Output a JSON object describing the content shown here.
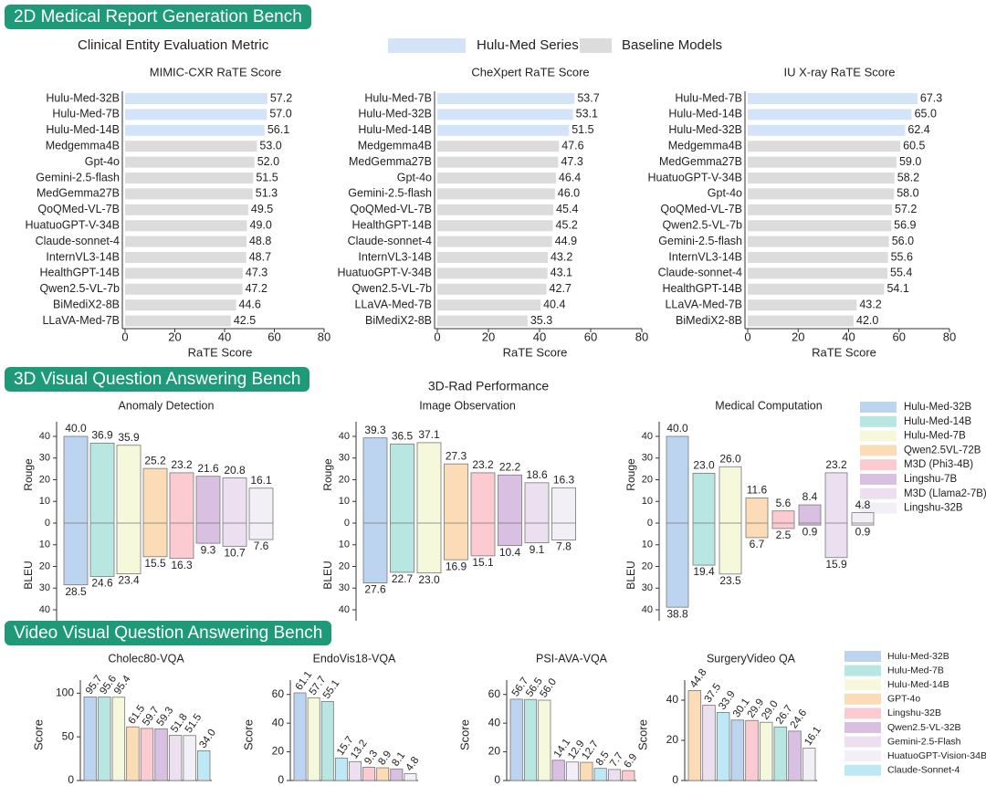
{
  "sections": {
    "report": "2D Medical Report Generation Bench",
    "vqa3d": "3D Visual Question Answering Bench",
    "video": "Video Visual Question Answering Bench"
  },
  "top_legend": {
    "caption": "Clinical Entity Evaluation Metric",
    "items": [
      {
        "label": "Hulu-Med Series",
        "color": "#d4e4f8"
      },
      {
        "label": "Baseline Models",
        "color": "#dcdcdc"
      }
    ]
  },
  "rad3d_title": "3D-Rad Performance",
  "legend3d": [
    {
      "label": "Hulu-Med-32B",
      "color": "#bcd4ef"
    },
    {
      "label": "Hulu-Med-14B",
      "color": "#b8e6e1"
    },
    {
      "label": "Hulu-Med-7B",
      "color": "#f6f8dc"
    },
    {
      "label": "Qwen2.5VL-72B",
      "color": "#fbdcb6"
    },
    {
      "label": "M3D (Phi3-4B)",
      "color": "#fbcbd1"
    },
    {
      "label": "Lingshu-7B",
      "color": "#d9c0e2"
    },
    {
      "label": "M3D (Llama2-7B)",
      "color": "#ebdff0"
    },
    {
      "label": "Lingshu-32B",
      "color": "#f2eff6"
    }
  ],
  "legend_video": [
    {
      "label": "Hulu-Med-32B",
      "color": "#bcd4ef"
    },
    {
      "label": "Hulu-Med-7B",
      "color": "#b8e6e1"
    },
    {
      "label": "Hulu-Med-14B",
      "color": "#f6f8dc"
    },
    {
      "label": "GPT-4o",
      "color": "#fbdcb6"
    },
    {
      "label": "Lingshu-32B",
      "color": "#fbcbd1"
    },
    {
      "label": "Qwen2.5-VL-32B",
      "color": "#d9c0e2"
    },
    {
      "label": "Gemini-2.5-Flash",
      "color": "#ebdff0"
    },
    {
      "label": "HuatuoGPT-Vision-34B",
      "color": "#f2eff6"
    },
    {
      "label": "Claude-Sonnet-4",
      "color": "#bfe8f7"
    }
  ],
  "chart_data": [
    {
      "type": "bar",
      "orientation": "horizontal",
      "title": "MIMIC-CXR RaTE Score",
      "xlabel": "RaTE Score",
      "xlim": [
        0,
        80
      ],
      "xticks": [
        0,
        20,
        40,
        60,
        80
      ],
      "categories": [
        "Hulu-Med-32B",
        "Hulu-Med-7B",
        "Hulu-Med-14B",
        "Medgemma4B",
        "Gpt-4o",
        "Gemini-2.5-flash",
        "MedGemma27B",
        "QoQMed-VL-7B",
        "HuatuoGPT-V-34B",
        "Claude-sonnet-4",
        "InternVL3-14B",
        "HealthGPT-14B",
        "Qwen2.5-VL-7b",
        "BiMediX2-8B",
        "LLaVA-Med-7B"
      ],
      "values": [
        57.2,
        57.0,
        56.1,
        53.0,
        52.0,
        51.5,
        51.3,
        49.5,
        49.0,
        48.8,
        48.7,
        47.3,
        47.2,
        44.6,
        42.5
      ],
      "hulu_count": 3
    },
    {
      "type": "bar",
      "orientation": "horizontal",
      "title": "CheXpert RaTE Score",
      "xlabel": "RaTE Score",
      "xlim": [
        0,
        80
      ],
      "xticks": [
        0,
        20,
        40,
        60,
        80
      ],
      "categories": [
        "Hulu-Med-7B",
        "Hulu-Med-32B",
        "Hulu-Med-14B",
        "Medgemma4B",
        "MedGemma27B",
        "Gpt-4o",
        "Gemini-2.5-flash",
        "QoQMed-VL-7B",
        "HealthGPT-14B",
        "Claude-sonnet-4",
        "InternVL3-14B",
        "HuatuoGPT-V-34B",
        "Qwen2.5-VL-7b",
        "LLaVA-Med-7B",
        "BiMediX2-8B"
      ],
      "values": [
        53.7,
        53.1,
        51.5,
        47.6,
        47.3,
        46.4,
        46.0,
        45.4,
        45.2,
        44.9,
        43.2,
        43.1,
        42.7,
        40.4,
        35.3
      ],
      "hulu_count": 3
    },
    {
      "type": "bar",
      "orientation": "horizontal",
      "title": "IU X-ray RaTE Score",
      "xlabel": "RaTE Score",
      "xlim": [
        0,
        80
      ],
      "xticks": [
        0,
        20,
        40,
        60,
        80
      ],
      "categories": [
        "Hulu-Med-7B",
        "Hulu-Med-14B",
        "Hulu-Med-32B",
        "Medgemma4B",
        "MedGemma27B",
        "HuatuoGPT-V-34B",
        "Gpt-4o",
        "QoQMed-VL-7B",
        "Qwen2.5-VL-7b",
        "Gemini-2.5-flash",
        "InternVL3-14B",
        "Claude-sonnet-4",
        "HealthGPT-14B",
        "LLaVA-Med-7B",
        "BiMediX2-8B"
      ],
      "values": [
        67.3,
        65.0,
        62.4,
        60.5,
        59.0,
        58.2,
        58.0,
        57.2,
        56.9,
        56.0,
        55.6,
        55.4,
        54.1,
        43.2,
        42.0
      ],
      "hulu_count": 3
    },
    {
      "type": "bar",
      "orientation": "diverging",
      "title": "Anomaly Detection",
      "ylabel_top": "Rouge",
      "ylabel_bottom": "BLEU",
      "ylim": [
        -40,
        40
      ],
      "yticks": [
        "40",
        "30",
        "20",
        "10",
        "0",
        "10",
        "20",
        "30",
        "40"
      ],
      "series": [
        {
          "name": "Rouge",
          "values": [
            40.0,
            36.9,
            35.9,
            25.2,
            23.2,
            21.6,
            20.8,
            16.1
          ]
        },
        {
          "name": "BLEU",
          "values": [
            28.5,
            24.6,
            23.4,
            15.5,
            16.3,
            9.3,
            10.7,
            7.6
          ]
        }
      ]
    },
    {
      "type": "bar",
      "orientation": "diverging",
      "title": "Image Observation",
      "ylabel_top": "Rouge",
      "ylabel_bottom": "BLEU",
      "ylim": [
        -40,
        40
      ],
      "yticks": [
        "40",
        "30",
        "20",
        "10",
        "0",
        "10",
        "20",
        "30",
        "40"
      ],
      "series": [
        {
          "name": "Rouge",
          "values": [
            39.3,
            36.5,
            37.1,
            27.3,
            23.2,
            22.2,
            18.6,
            16.3
          ]
        },
        {
          "name": "BLEU",
          "values": [
            27.6,
            22.7,
            23.0,
            16.9,
            15.1,
            10.4,
            9.1,
            7.8
          ]
        }
      ]
    },
    {
      "type": "bar",
      "orientation": "diverging",
      "title": "Medical Computation",
      "ylabel_top": "Rouge",
      "ylabel_bottom": "BLEU",
      "ylim": [
        -40,
        40
      ],
      "yticks": [
        "40",
        "30",
        "20",
        "10",
        "0",
        "10",
        "20",
        "30",
        "40"
      ],
      "series": [
        {
          "name": "Rouge",
          "values": [
            40.0,
            23.0,
            26.0,
            11.6,
            5.6,
            8.4,
            23.2,
            4.8
          ]
        },
        {
          "name": "BLEU",
          "values": [
            38.8,
            19.4,
            23.5,
            6.7,
            2.5,
            0.9,
            15.9,
            0.9
          ]
        }
      ]
    },
    {
      "type": "bar",
      "title": "Cholec80-VQA",
      "ylabel": "Score",
      "ylim": [
        0,
        115
      ],
      "yticks": [
        0,
        50,
        100
      ],
      "models": [
        0,
        1,
        2,
        3,
        4,
        5,
        6,
        7,
        8
      ],
      "values": [
        95.7,
        95.6,
        95.4,
        61.5,
        59.7,
        59.3,
        51.8,
        51.5,
        34.0
      ]
    },
    {
      "type": "bar",
      "title": "EndoVis18-VQA",
      "ylabel": "Score",
      "ylim": [
        0,
        70
      ],
      "yticks": [
        0,
        20,
        40,
        60
      ],
      "models": [
        0,
        2,
        1,
        8,
        6,
        4,
        3,
        5,
        7
      ],
      "values": [
        61.1,
        57.7,
        55.1,
        15.7,
        13.2,
        9.3,
        8.9,
        8.1,
        4.8
      ]
    },
    {
      "type": "bar",
      "title": "PSI-AVA-VQA",
      "ylabel": "Score",
      "ylim": [
        0,
        70
      ],
      "yticks": [
        0,
        20,
        40,
        60
      ],
      "models": [
        0,
        1,
        2,
        5,
        7,
        3,
        8,
        6,
        4
      ],
      "values": [
        56.7,
        56.5,
        56.0,
        14.1,
        12.9,
        12.7,
        8.5,
        7.7,
        6.9
      ]
    },
    {
      "type": "bar",
      "title": "SurgeryVideo QA",
      "ylabel": "Score",
      "ylim": [
        0,
        50
      ],
      "yticks": [
        0,
        20,
        40
      ],
      "models": [
        3,
        6,
        8,
        0,
        4,
        2,
        1,
        5,
        7
      ],
      "values": [
        44.8,
        37.5,
        33.9,
        30.1,
        29.9,
        29.0,
        26.7,
        24.6,
        16.1
      ]
    }
  ]
}
